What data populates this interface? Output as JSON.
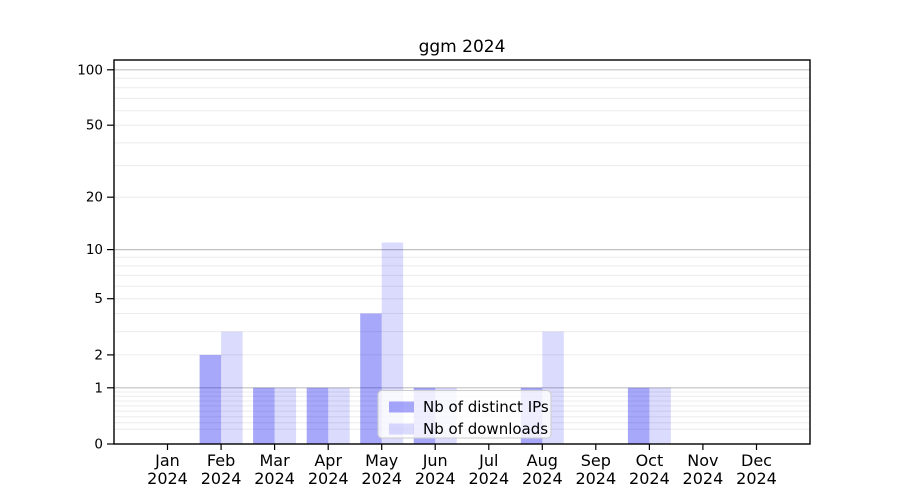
{
  "chart_data": {
    "type": "bar",
    "title": "ggm 2024",
    "categories": [
      "Jan",
      "Feb",
      "Mar",
      "Apr",
      "May",
      "Jun",
      "Jul",
      "Aug",
      "Sep",
      "Oct",
      "Nov",
      "Dec"
    ],
    "category_year": "2024",
    "series": [
      {
        "name": "Nb of distinct IPs",
        "color": "#0000F057",
        "values": [
          0,
          2,
          1,
          1,
          4,
          1,
          0,
          1,
          0,
          1,
          0,
          0
        ]
      },
      {
        "name": "Nb of downloads",
        "color": "#0000F024",
        "values": [
          0,
          3,
          1,
          1,
          11,
          1,
          0,
          3,
          0,
          1,
          0,
          0
        ]
      }
    ],
    "scale": "log1p",
    "ylim": [
      0,
      113
    ],
    "xlabel": "",
    "ylabel": "",
    "yticks": [
      0,
      1,
      2,
      5,
      10,
      20,
      50,
      100
    ],
    "gridlines": {
      "decade": [
        1,
        10,
        100
      ],
      "light": [
        0.2,
        0.3,
        0.4,
        0.5,
        0.6,
        0.7,
        0.8,
        0.9,
        2,
        3,
        4,
        5,
        6,
        7,
        8,
        9,
        20,
        30,
        40,
        50,
        60,
        70,
        80,
        90
      ]
    },
    "legend": {
      "position": "lower-center-inside",
      "entries": [
        "Nb of distinct IPs",
        "Nb of downloads"
      ]
    },
    "colors": {
      "grid_decade": "#c0c0c0",
      "grid_light": "#ececec",
      "axis": "#000000",
      "legend_border": "#cccccc",
      "legend_background": "#ffffffcc",
      "plot_background": "#ffffff"
    }
  }
}
